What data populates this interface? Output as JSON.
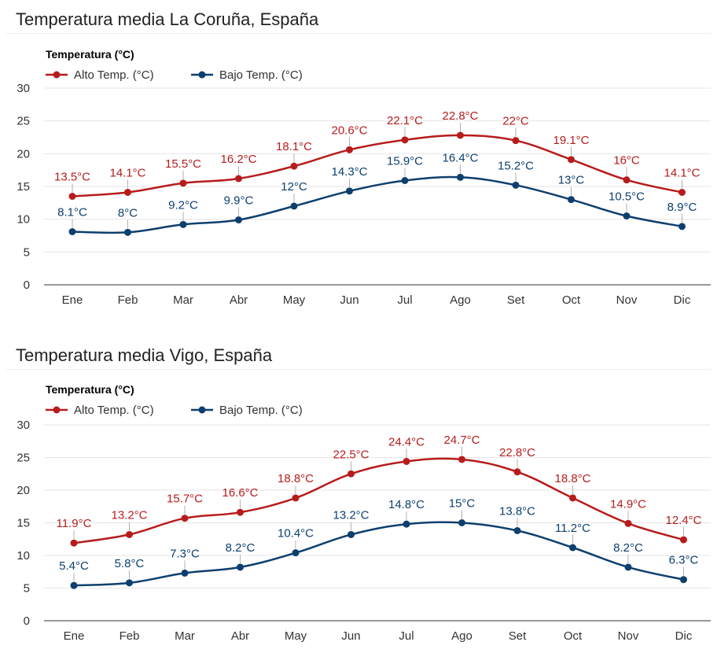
{
  "chart_data": [
    {
      "type": "line",
      "title": "Temperatura media La Coruña, España",
      "legend_title": "Temperatura (°C)",
      "legend_position": "top-left",
      "grid": true,
      "ylim": [
        0,
        30
      ],
      "yticks": [
        "0",
        "5",
        "10",
        "15",
        "20",
        "25",
        "30"
      ],
      "categories": [
        "Ene",
        "Feb",
        "Mar",
        "Abr",
        "May",
        "Jun",
        "Jul",
        "Ago",
        "Set",
        "Oct",
        "Nov",
        "Dic"
      ],
      "series": [
        {
          "name": "Alto Temp. (°C)",
          "color": "#B71C1C",
          "values": [
            13.5,
            14.1,
            15.5,
            16.2,
            18.1,
            20.6,
            22.1,
            22.8,
            22,
            19.1,
            16,
            14.1
          ],
          "labels": [
            "13.5°C",
            "14.1°C",
            "15.5°C",
            "16.2°C",
            "18.1°C",
            "20.6°C",
            "22.1°C",
            "22.8°C",
            "22°C",
            "19.1°C",
            "16°C",
            "14.1°C"
          ]
        },
        {
          "name": "Bajo Temp. (°C)",
          "color": "#0D3F6E",
          "values": [
            8.1,
            8,
            9.2,
            9.9,
            12,
            14.3,
            15.9,
            16.4,
            15.2,
            13,
            10.5,
            8.9
          ],
          "labels": [
            "8.1°C",
            "8°C",
            "9.2°C",
            "9.9°C",
            "12°C",
            "14.3°C",
            "15.9°C",
            "16.4°C",
            "15.2°C",
            "13°C",
            "10.5°C",
            "8.9°C"
          ]
        }
      ]
    },
    {
      "type": "line",
      "title": "Temperatura media Vigo, España",
      "legend_title": "Temperatura (°C)",
      "legend_position": "top-left",
      "grid": true,
      "ylim": [
        0,
        30
      ],
      "yticks": [
        "0",
        "5",
        "10",
        "15",
        "20",
        "25",
        "30"
      ],
      "categories": [
        "Ene",
        "Feb",
        "Mar",
        "Abr",
        "May",
        "Jun",
        "Jul",
        "Ago",
        "Set",
        "Oct",
        "Nov",
        "Dic"
      ],
      "series": [
        {
          "name": "Alto Temp. (°C)",
          "color": "#B71C1C",
          "values": [
            11.9,
            13.2,
            15.7,
            16.6,
            18.8,
            22.5,
            24.4,
            24.7,
            22.8,
            18.8,
            14.9,
            12.4
          ],
          "labels": [
            "11.9°C",
            "13.2°C",
            "15.7°C",
            "16.6°C",
            "18.8°C",
            "22.5°C",
            "24.4°C",
            "24.7°C",
            "22.8°C",
            "18.8°C",
            "14.9°C",
            "12.4°C"
          ]
        },
        {
          "name": "Bajo Temp. (°C)",
          "color": "#0D3F6E",
          "values": [
            5.4,
            5.8,
            7.3,
            8.2,
            10.4,
            13.2,
            14.8,
            15,
            13.8,
            11.2,
            8.2,
            6.3
          ],
          "labels": [
            "5.4°C",
            "5.8°C",
            "7.3°C",
            "8.2°C",
            "10.4°C",
            "13.2°C",
            "14.8°C",
            "15°C",
            "13.8°C",
            "11.2°C",
            "8.2°C",
            "6.3°C"
          ]
        }
      ]
    }
  ]
}
